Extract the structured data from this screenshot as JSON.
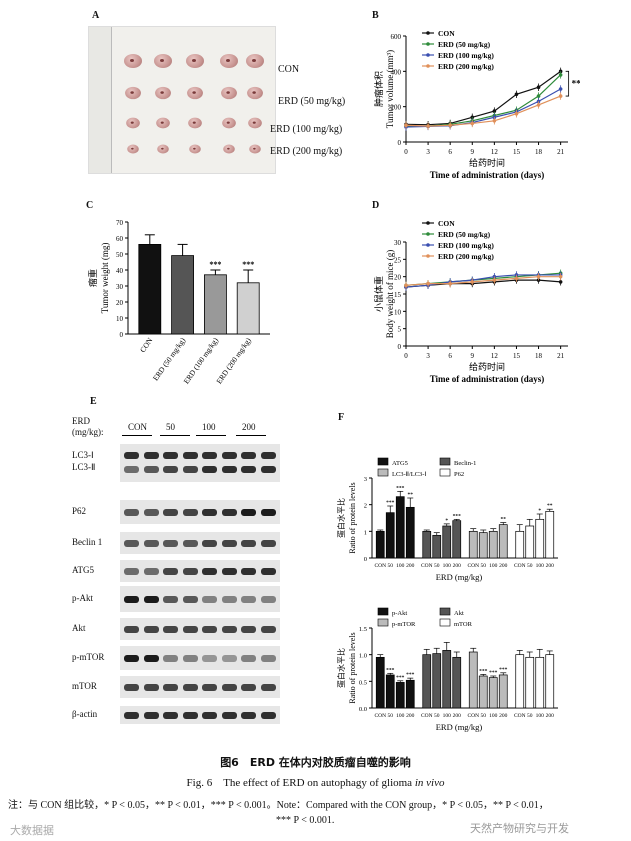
{
  "panels": {
    "A": "A",
    "B": "B",
    "C": "C",
    "D": "D",
    "E": "E",
    "F": "F"
  },
  "panelA": {
    "groups": [
      "CON",
      "ERD (50 mg/kg)",
      "ERD (100 mg/kg)",
      "ERD (200 mg/kg)"
    ]
  },
  "chart_data": [
    {
      "type": "line",
      "panel": "B",
      "ylabel_cn": "肿瘤体积",
      "ylabel": "Tumor volume (mm³)",
      "xlabel_cn": "给药时间",
      "xlabel": "Time of administration (days)",
      "x": [
        0,
        3,
        6,
        9,
        12,
        15,
        18,
        21
      ],
      "ylim": [
        0,
        600
      ],
      "yticks": [
        "0",
        "200",
        "400",
        "600"
      ],
      "significance": "**",
      "series": [
        {
          "name": "CON",
          "color": "#111111",
          "values": [
            100,
            98,
            105,
            140,
            175,
            270,
            310,
            400
          ]
        },
        {
          "name": "ERD (50 mg/kg)",
          "color": "#2e8b3a",
          "values": [
            90,
            90,
            100,
            120,
            150,
            180,
            260,
            380
          ]
        },
        {
          "name": "ERD (100 mg/kg)",
          "color": "#3a4fb0",
          "values": [
            85,
            88,
            92,
            110,
            140,
            170,
            230,
            300
          ]
        },
        {
          "name": "ERD (200 mg/kg)",
          "color": "#e0905a",
          "values": [
            95,
            90,
            95,
            105,
            120,
            160,
            210,
            260
          ]
        }
      ]
    },
    {
      "type": "bar",
      "panel": "C",
      "ylabel_cn": "瘤重",
      "ylabel": "Tumor weight (mg)",
      "categories": [
        "CON",
        "ERD (50 mg/kg)",
        "ERD (100 mg/kg)",
        "ERD (200 mg/kg)"
      ],
      "values": [
        56,
        49,
        37,
        32
      ],
      "errors": [
        6,
        7,
        3,
        8
      ],
      "colors": [
        "#111111",
        "#555555",
        "#999999",
        "#d0d0d0"
      ],
      "ylim": [
        0,
        70
      ],
      "yticks": [
        "0",
        "10",
        "20",
        "30",
        "40",
        "50",
        "60",
        "70"
      ],
      "sig": [
        "",
        "",
        "***",
        "***"
      ]
    },
    {
      "type": "line",
      "panel": "D",
      "ylabel_cn": "小鼠体重",
      "ylabel": "Body weight of mice (g)",
      "xlabel_cn": "给药时间",
      "xlabel": "Time of administration (days)",
      "x": [
        0,
        3,
        6,
        9,
        12,
        15,
        18,
        21
      ],
      "ylim": [
        0,
        30
      ],
      "yticks": [
        "0",
        "5",
        "10",
        "15",
        "20",
        "25",
        "30"
      ],
      "series": [
        {
          "name": "CON",
          "color": "#111111",
          "values": [
            17,
            17.5,
            18,
            18,
            18.5,
            19,
            19,
            18.5
          ]
        },
        {
          "name": "ERD (50 mg/kg)",
          "color": "#2e8b3a",
          "values": [
            17.5,
            18,
            18.5,
            19,
            19.5,
            20,
            20.5,
            21
          ]
        },
        {
          "name": "ERD (100 mg/kg)",
          "color": "#3a4fb0",
          "values": [
            17,
            17.5,
            18.5,
            19,
            20,
            20.5,
            20.5,
            20.5
          ]
        },
        {
          "name": "ERD (200 mg/kg)",
          "color": "#e0905a",
          "values": [
            17.5,
            18,
            18,
            18.5,
            19,
            19.5,
            20,
            20
          ]
        }
      ]
    },
    {
      "type": "bar",
      "panel": "F-top",
      "ylabel_cn": "蛋白水平比",
      "ylabel": "Ratio of protein levels",
      "xlabel": "ERD (mg/kg)",
      "ylim": [
        0,
        3
      ],
      "yticks": [
        "0",
        "1",
        "2",
        "3"
      ],
      "group_ticks": [
        "CON",
        "50",
        "100",
        "200"
      ],
      "legend": [
        "ATG5",
        "Beclin-1",
        "LC3-Ⅱ/LC3-Ⅰ",
        "P62"
      ],
      "groups": [
        {
          "name": "ATG5",
          "color": "#111111",
          "values": [
            1.0,
            1.7,
            2.3,
            1.9
          ],
          "errors": [
            0.05,
            0.25,
            0.2,
            0.35
          ],
          "sig": [
            "",
            "***",
            "***",
            "**"
          ]
        },
        {
          "name": "Beclin-1",
          "color": "#555555",
          "values": [
            1.0,
            0.85,
            1.2,
            1.4
          ],
          "errors": [
            0.05,
            0.1,
            0.08,
            0.05
          ],
          "sig": [
            "",
            "",
            "*",
            "***"
          ]
        },
        {
          "name": "LC3-Ⅱ/LC3-Ⅰ",
          "color": "#bbbbbb",
          "values": [
            1.0,
            0.95,
            1.0,
            1.25
          ],
          "errors": [
            0.1,
            0.1,
            0.1,
            0.08
          ],
          "sig": [
            "",
            "",
            "",
            "**"
          ]
        },
        {
          "name": "P62",
          "color": "#ffffff",
          "values": [
            1.0,
            1.2,
            1.45,
            1.75
          ],
          "errors": [
            0.25,
            0.25,
            0.2,
            0.08
          ],
          "sig": [
            "",
            "",
            "*",
            "**"
          ]
        }
      ]
    },
    {
      "type": "bar",
      "panel": "F-bottom",
      "ylabel_cn": "蛋白水平比",
      "ylabel": "Ratio of protein levels",
      "xlabel": "ERD (mg/kg)",
      "ylim": [
        0,
        1.5
      ],
      "yticks": [
        "0.0",
        "0.5",
        "1.0",
        "1.5"
      ],
      "group_ticks": [
        "CON",
        "50",
        "100",
        "200"
      ],
      "legend": [
        "p-Akt",
        "Akt",
        "p-mTOR",
        "mTOR"
      ],
      "groups": [
        {
          "name": "p-Akt",
          "color": "#111111",
          "values": [
            0.95,
            0.62,
            0.48,
            0.52
          ],
          "errors": [
            0.05,
            0.03,
            0.03,
            0.04
          ],
          "sig": [
            "",
            "***",
            "***",
            "***"
          ]
        },
        {
          "name": "Akt",
          "color": "#555555",
          "values": [
            1.0,
            1.02,
            1.08,
            0.95
          ],
          "errors": [
            0.1,
            0.1,
            0.15,
            0.1
          ],
          "sig": [
            "",
            "",
            "",
            ""
          ]
        },
        {
          "name": "p-mTOR",
          "color": "#bbbbbb",
          "values": [
            1.05,
            0.6,
            0.57,
            0.62
          ],
          "errors": [
            0.07,
            0.03,
            0.03,
            0.04
          ],
          "sig": [
            "",
            "***",
            "***",
            "***"
          ]
        },
        {
          "name": "mTOR",
          "color": "#ffffff",
          "values": [
            1.0,
            0.95,
            0.95,
            1.0
          ],
          "errors": [
            0.08,
            0.1,
            0.15,
            0.07
          ],
          "sig": [
            "",
            "",
            "",
            ""
          ]
        }
      ]
    }
  ],
  "panelE": {
    "erd_label": "ERD",
    "erd_unit": "(mg/kg):",
    "doses": [
      "CON",
      "50",
      "100",
      "200"
    ],
    "rows": [
      "LC3-Ⅰ",
      "LC3-Ⅱ",
      "P62",
      "Beclin 1",
      "ATG5",
      "p-Akt",
      "Akt",
      "p-mTOR",
      "mTOR",
      "β-actin"
    ]
  },
  "caption": {
    "cn": "图6　ERD 在体内对胶质瘤自噬的影响",
    "en_prefix": "Fig. 6　The effect of ERD on autophagy of glioma ",
    "en_italic": "in vivo",
    "note_line1": "注：与 CON 组比较，* P < 0.05，** P < 0.01，*** P < 0.001。Note：Compared with the CON group，* P < 0.05，** P < 0.01，",
    "note_line2": "*** P < 0.001."
  },
  "watermarks": {
    "left": "大数据据",
    "right": "天然产物研究与开发"
  }
}
